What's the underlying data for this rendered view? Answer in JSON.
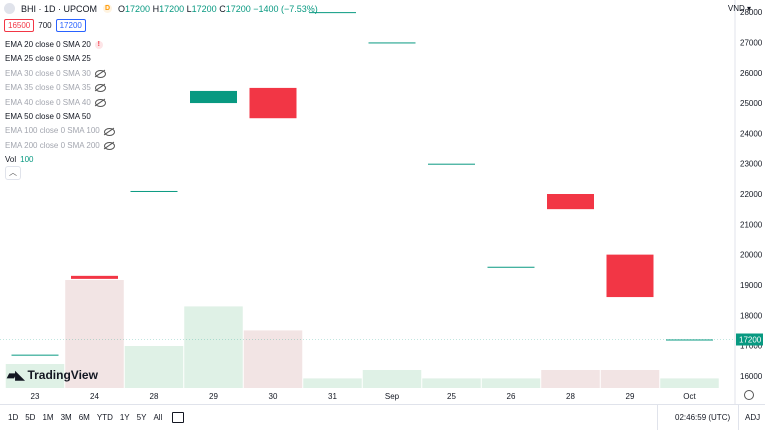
{
  "header": {
    "symbol": "BHI · 1D · UPCOM",
    "badge": "D",
    "ohlc": {
      "o_label": "O",
      "o_value": "17200",
      "h_label": "H",
      "h_value": "17200",
      "l_label": "L",
      "l_value": "17200",
      "c_label": "C",
      "c_value": "17200",
      "change": "−1400 (−7.53%)"
    },
    "currency": "VND"
  },
  "trade": {
    "sell": "16500",
    "spread": "700",
    "buy": "17200"
  },
  "indicators": [
    {
      "label": "EMA 20 close 0 SMA 20",
      "visible": true,
      "icon": "warning-icon"
    },
    {
      "label": "EMA 25 close 0 SMA 25",
      "visible": true,
      "icon": ""
    },
    {
      "label": "EMA 30 close 0 SMA 30",
      "visible": false,
      "icon": "eye-hidden-icon"
    },
    {
      "label": "EMA 35 close 0 SMA 35",
      "visible": false,
      "icon": "eye-hidden-icon"
    },
    {
      "label": "EMA 40 close 0 SMA 40",
      "visible": false,
      "icon": "eye-hidden-icon"
    },
    {
      "label": "EMA 50 close 0 SMA 50",
      "visible": true,
      "icon": ""
    },
    {
      "label": "EMA 100 close 0 SMA 100",
      "visible": false,
      "icon": "eye-hidden-icon"
    },
    {
      "label": "EMA 200 close 0 SMA 200",
      "visible": false,
      "icon": "eye-hidden-icon"
    }
  ],
  "volume": {
    "label": "Vol",
    "value": "100"
  },
  "logo_text": "TradingView",
  "bottom": {
    "ranges": [
      "1D",
      "5D",
      "1M",
      "3M",
      "6M",
      "YTD",
      "1Y",
      "5Y",
      "All"
    ],
    "time": "02:46:59 (UTC)",
    "adj": "ADJ"
  },
  "colors": {
    "up": "#089981",
    "down": "#f23645",
    "vol_up": "#dff1e6",
    "vol_down": "#f2e4e4"
  },
  "chart_data": {
    "type": "candlestick",
    "x_ticks": [
      "23",
      "24",
      "28",
      "29",
      "30",
      "31",
      "Sep",
      "25",
      "26",
      "28",
      "29",
      "Oct"
    ],
    "y_ticks": [
      16000,
      17000,
      18000,
      19000,
      20000,
      21000,
      22000,
      23000,
      24000,
      25000,
      26000,
      27000,
      28000
    ],
    "ylim": [
      15600,
      28400
    ],
    "last_price_label": "17200",
    "candles": [
      {
        "open": 16700,
        "close": 16700,
        "dir": "up",
        "volume": 2
      },
      {
        "open": 19300,
        "close": 19200,
        "dir": "down",
        "volume": 9
      },
      {
        "open": 22100,
        "close": 22100,
        "dir": "up",
        "volume": 3.5
      },
      {
        "open": 25000,
        "close": 25400,
        "dir": "up",
        "volume": 6.8
      },
      {
        "open": 25500,
        "close": 24500,
        "dir": "down",
        "volume": 4.8
      },
      {
        "open": 28000,
        "close": 28000,
        "dir": "up",
        "volume": 0.8
      },
      {
        "open": 27000,
        "close": 27000,
        "dir": "up",
        "volume": 1.5
      },
      {
        "open": 23000,
        "close": 23000,
        "dir": "up",
        "volume": 0.8
      },
      {
        "open": 19600,
        "close": 19600,
        "dir": "up",
        "volume": 0.8
      },
      {
        "open": 22000,
        "close": 21500,
        "dir": "down",
        "volume": 1.5
      },
      {
        "open": 20000,
        "close": 18600,
        "dir": "down",
        "volume": 1.5
      },
      {
        "open": 17200,
        "close": 17200,
        "dir": "up",
        "volume": 0.8
      }
    ],
    "vol_max": 10
  }
}
